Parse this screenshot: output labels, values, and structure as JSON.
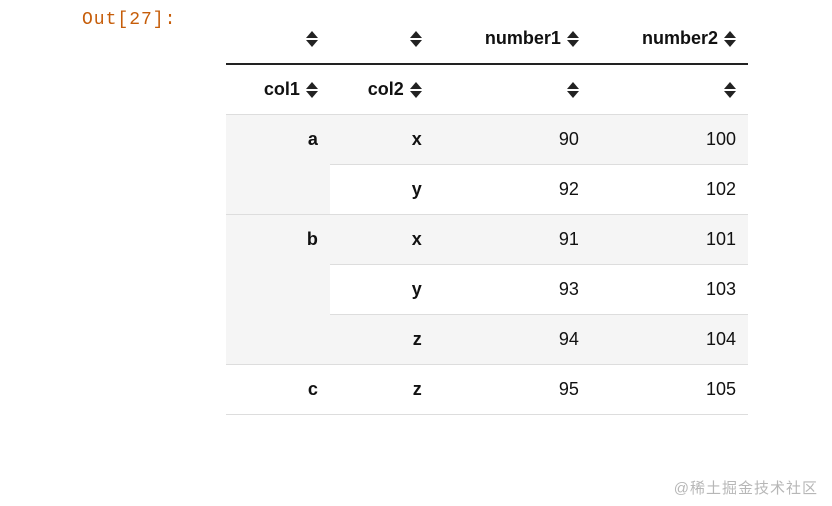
{
  "prompt": "Out[27]:",
  "headers": {
    "data_cols": [
      "number1",
      "number2"
    ],
    "index_cols": [
      "col1",
      "col2"
    ]
  },
  "rows": [
    {
      "col1": "a",
      "col2": "x",
      "number1": 90,
      "number2": 100,
      "col1_rowspan": 2,
      "shade": true,
      "col1_bg": "shade"
    },
    {
      "col1": "",
      "col2": "y",
      "number1": 92,
      "number2": 102,
      "col1_rowspan": 0,
      "shade": false
    },
    {
      "col1": "b",
      "col2": "x",
      "number1": 91,
      "number2": 101,
      "col1_rowspan": 3,
      "shade": true,
      "col1_bg": "shade"
    },
    {
      "col1": "",
      "col2": "y",
      "number1": 93,
      "number2": 103,
      "col1_rowspan": 0,
      "shade": false
    },
    {
      "col1": "",
      "col2": "z",
      "number1": 94,
      "number2": 104,
      "col1_rowspan": 0,
      "shade": true
    },
    {
      "col1": "c",
      "col2": "z",
      "number1": 95,
      "number2": 105,
      "col1_rowspan": 1,
      "shade": false,
      "col1_bg": "white"
    }
  ],
  "watermark": "@稀土掘金技术社区"
}
